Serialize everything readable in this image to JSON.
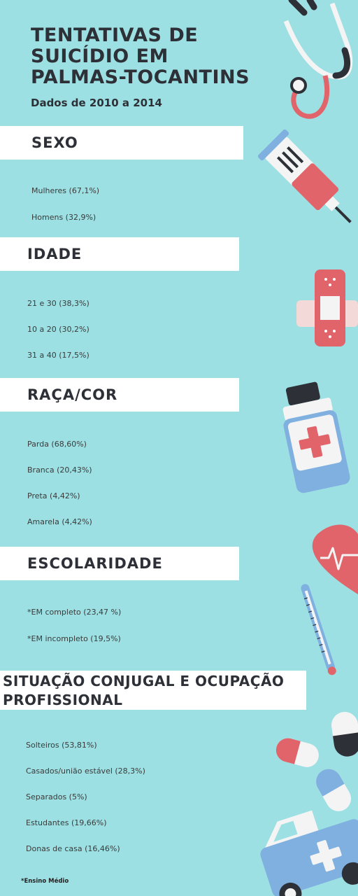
{
  "header": {
    "title_lines": [
      "TENTATIVAS DE",
      "SUICÍDIO EM",
      "PALMAS-TOCANTINS"
    ],
    "subtitle": "Dados de 2010 a 2014"
  },
  "sections": [
    {
      "heading": "SEXO",
      "items": [
        "Mulheres (67,1%)",
        "Homens (32,9%)"
      ]
    },
    {
      "heading": "IDADE",
      "items": [
        "21 e 30 (38,3%)",
        "10 a 20 (30,2%)",
        "31 a 40 (17,5%)"
      ]
    },
    {
      "heading": "RAÇA/COR",
      "items": [
        "Parda (68,60%)",
        "Branca (20,43%)",
        "Preta (4,42%)",
        "Amarela (4,42%)"
      ]
    },
    {
      "heading": "ESCOLARIDADE",
      "items": [
        "*EM completo (23,47 %)",
        "*EM incompleto (19,5%)"
      ]
    },
    {
      "heading_lines": [
        "SITUAÇÃO CONJUGAL E OCUPAÇÃO",
        "PROFISSIONAL"
      ],
      "items": [
        "Solteiros (53,81%)",
        "Casados/união estável (28,3%)",
        "Separados (5%)",
        "Estudantes (19,66%)",
        "Donas de casa (16,46%)"
      ]
    }
  ],
  "footnote": "*Ensino Médio",
  "icons": [
    "stethoscope-icon",
    "syringe-icon",
    "bandage-icon",
    "medicine-bottle-icon",
    "heart-pulse-icon",
    "thermometer-icon",
    "capsule-pills-icon",
    "ambulance-icon"
  ],
  "colors": {
    "background": "#9de0e3",
    "band": "#ffffff",
    "text": "#2d3036",
    "accent_red": "#e0646a",
    "accent_blue": "#7fb0e0"
  }
}
